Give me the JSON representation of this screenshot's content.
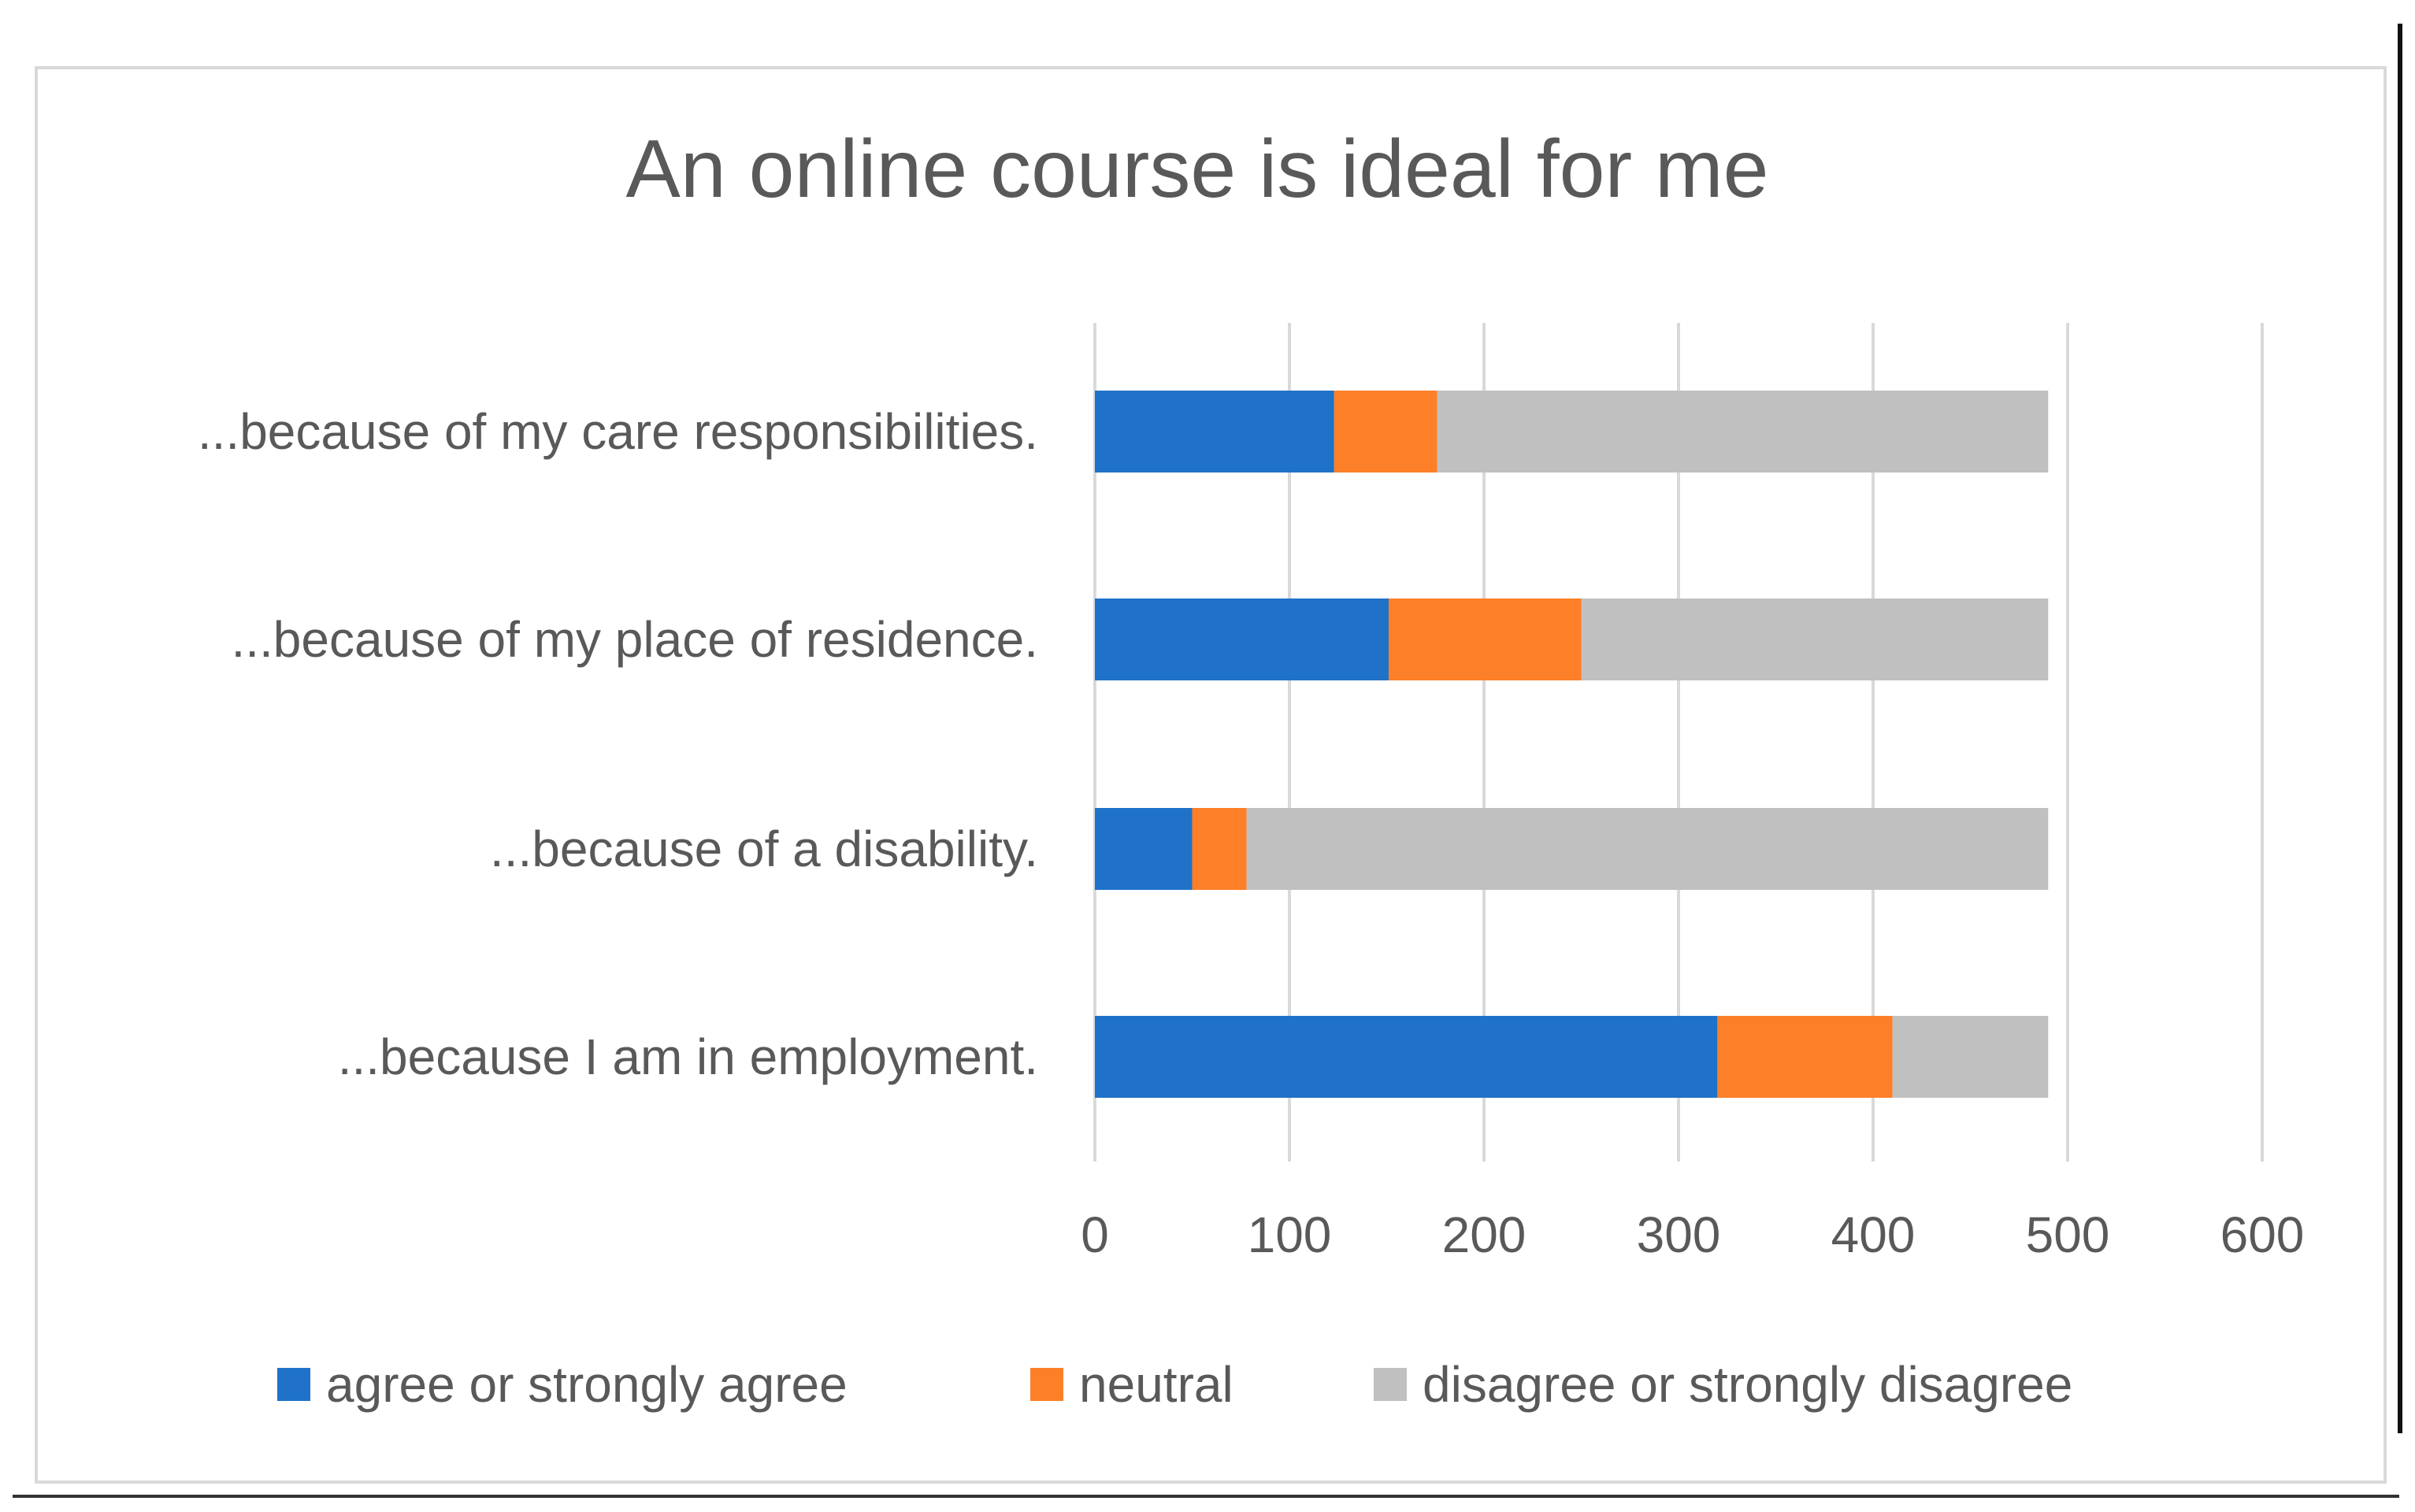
{
  "chart_data": {
    "type": "bar",
    "orientation": "horizontal",
    "stacked": true,
    "title": "An online course is ideal for me",
    "categories": [
      "...because of my care responsibilities.",
      "...because of my place of residence.",
      "...because of a disability.",
      "...because I am in employment."
    ],
    "series": [
      {
        "name": "agree or strongly agree",
        "color": "#1f72c8",
        "values": [
          123,
          151,
          50,
          320
        ]
      },
      {
        "name": "neutral",
        "color": "#fd7f27",
        "values": [
          53,
          99,
          28,
          90
        ]
      },
      {
        "name": "disagree or strongly disagree",
        "color": "#c0c0c0",
        "values": [
          314,
          240,
          412,
          80
        ]
      }
    ],
    "xlim": [
      0,
      600
    ],
    "xticks": [
      0,
      100,
      200,
      300,
      400,
      500,
      600
    ],
    "xlabel": "",
    "ylabel": "",
    "grid": true,
    "legend_position": "bottom",
    "colors": {
      "gridline": "#d9d9d9",
      "text": "#595959",
      "frame": "#d9d9d9"
    }
  }
}
